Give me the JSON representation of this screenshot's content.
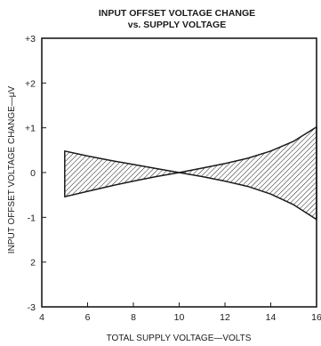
{
  "chart_data": {
    "type": "area",
    "title": "INPUT OFFSET VOLTAGE CHANGE",
    "subtitle": "vs. SUPPLY VOLTAGE",
    "xlabel": "TOTAL SUPPLY VOLTAGE—VOLTS",
    "ylabel": "INPUT OFFSET VOLTAGE CHANGE—μV",
    "xlim": [
      4,
      16
    ],
    "ylim": [
      -3,
      3
    ],
    "x_ticks": [
      "4",
      "6",
      "8",
      "10",
      "12",
      "14",
      "16"
    ],
    "y_ticks": [
      "+3",
      "+2",
      "+1",
      "0",
      "-1",
      "2",
      "-3"
    ],
    "grid": false,
    "series": [
      {
        "x": [
          5,
          6,
          7,
          8,
          9,
          10,
          11,
          12,
          13,
          14,
          15,
          16
        ],
        "upper": [
          0.48,
          0.37,
          0.27,
          0.18,
          0.09,
          0.0,
          0.1,
          0.2,
          0.32,
          0.48,
          0.7,
          1.02
        ],
        "lower": [
          -0.54,
          -0.42,
          -0.3,
          -0.19,
          -0.09,
          0.0,
          -0.09,
          -0.19,
          -0.31,
          -0.48,
          -0.72,
          -1.05
        ]
      }
    ]
  }
}
